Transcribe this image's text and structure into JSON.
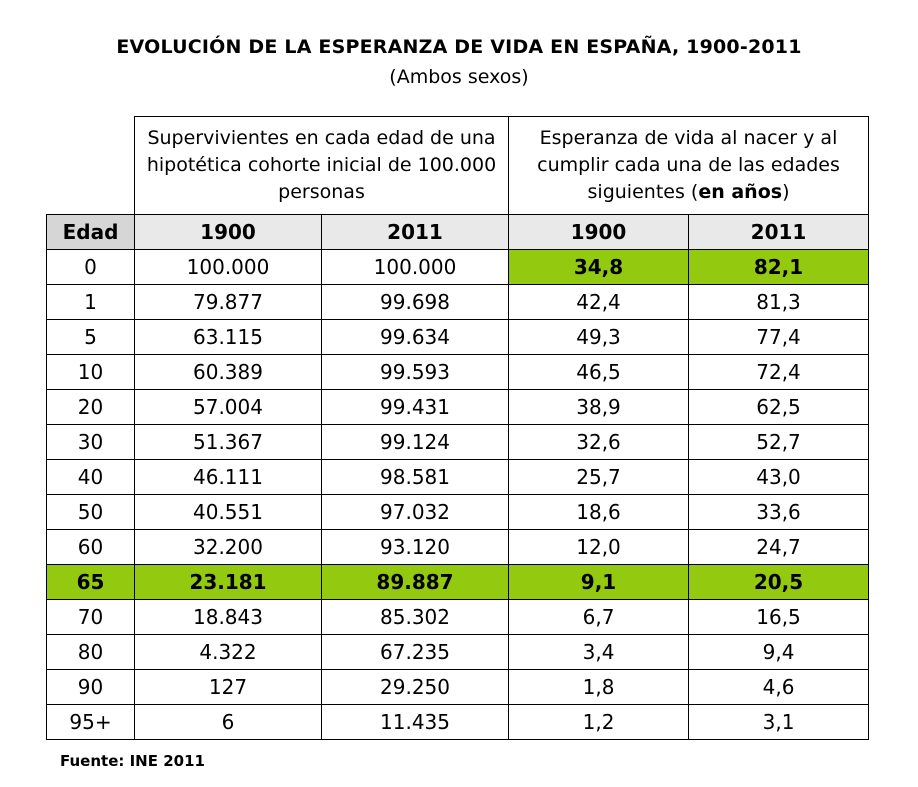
{
  "title": "EVOLUCIÓN DE LA ESPERANZA DE VIDA EN ESPAÑA, 1900-2011",
  "subtitle": "(Ambos sexos)",
  "group_headers": {
    "survivors": "Supervivientes en cada edad de una hipotética cohorte inicial de 100.000 personas",
    "life_expectancy_prefix": "Esperanza de vida al nacer y al cumplir cada una de las edades siguientes (",
    "life_expectancy_bold": "en años",
    "life_expectancy_suffix": ")"
  },
  "column_headers": [
    "Edad",
    "1900",
    "2011",
    "1900",
    "2011"
  ],
  "rows": [
    {
      "edad": "0",
      "s1900": "100.000",
      "s2011": "100.000",
      "e1900": "34,8",
      "e2011": "82,1"
    },
    {
      "edad": "1",
      "s1900": "79.877",
      "s2011": "99.698",
      "e1900": "42,4",
      "e2011": "81,3"
    },
    {
      "edad": "5",
      "s1900": "63.115",
      "s2011": "99.634",
      "e1900": "49,3",
      "e2011": "77,4"
    },
    {
      "edad": "10",
      "s1900": "60.389",
      "s2011": "99.593",
      "e1900": "46,5",
      "e2011": "72,4"
    },
    {
      "edad": "20",
      "s1900": "57.004",
      "s2011": "99.431",
      "e1900": "38,9",
      "e2011": "62,5"
    },
    {
      "edad": "30",
      "s1900": "51.367",
      "s2011": "99.124",
      "e1900": "32,6",
      "e2011": "52,7"
    },
    {
      "edad": "40",
      "s1900": "46.111",
      "s2011": "98.581",
      "e1900": "25,7",
      "e2011": "43,0"
    },
    {
      "edad": "50",
      "s1900": "40.551",
      "s2011": "97.032",
      "e1900": "18,6",
      "e2011": "33,6"
    },
    {
      "edad": "60",
      "s1900": "32.200",
      "s2011": "93.120",
      "e1900": "12,0",
      "e2011": "24,7"
    },
    {
      "edad": "65",
      "s1900": "23.181",
      "s2011": "89.887",
      "e1900": "9,1",
      "e2011": "20,5"
    },
    {
      "edad": "70",
      "s1900": "18.843",
      "s2011": "85.302",
      "e1900": "6,7",
      "e2011": "16,5"
    },
    {
      "edad": "80",
      "s1900": "4.322",
      "s2011": "67.235",
      "e1900": "3,4",
      "e2011": "9,4"
    },
    {
      "edad": "90",
      "s1900": "127",
      "s2011": "29.250",
      "e1900": "1,8",
      "e2011": "4,6"
    },
    {
      "edad": "95+",
      "s1900": "6",
      "s2011": "11.435",
      "e1900": "1,2",
      "e2011": "3,1"
    }
  ],
  "highlight_color": "#93c90e",
  "header_fill": "#e9e9e9",
  "source": "Fuente: INE 2011"
}
